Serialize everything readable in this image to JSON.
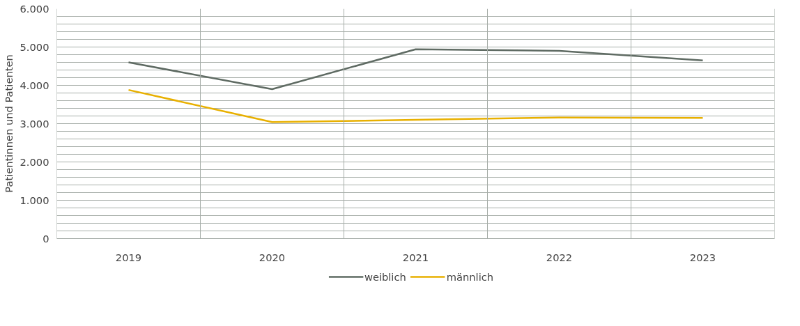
{
  "chart_data": {
    "type": "line",
    "ylabel": "Patientinnen und Patienten",
    "categories": [
      "2019",
      "2020",
      "2021",
      "2022",
      "2023"
    ],
    "series": [
      {
        "name": "weiblich",
        "color": "#5f6b63",
        "values": [
          4600,
          3900,
          4940,
          4900,
          4650
        ]
      },
      {
        "name": "männlich",
        "color": "#e8b000",
        "values": [
          3880,
          3040,
          3100,
          3160,
          3150
        ]
      }
    ],
    "ylim": [
      0,
      6000
    ],
    "yticks": [
      {
        "value": 0,
        "label": "0"
      },
      {
        "value": 200,
        "label": null
      },
      {
        "value": 400,
        "label": null
      },
      {
        "value": 600,
        "label": null
      },
      {
        "value": 800,
        "label": null
      },
      {
        "value": 1000,
        "label": "1.000"
      },
      {
        "value": 1200,
        "label": null
      },
      {
        "value": 1400,
        "label": null
      },
      {
        "value": 1600,
        "label": null
      },
      {
        "value": 1800,
        "label": null
      },
      {
        "value": 2000,
        "label": "2.000"
      },
      {
        "value": 2200,
        "label": null
      },
      {
        "value": 2400,
        "label": null
      },
      {
        "value": 2600,
        "label": null
      },
      {
        "value": 2800,
        "label": null
      },
      {
        "value": 3000,
        "label": "3.000"
      },
      {
        "value": 3200,
        "label": null
      },
      {
        "value": 3400,
        "label": null
      },
      {
        "value": 3600,
        "label": null
      },
      {
        "value": 3800,
        "label": null
      },
      {
        "value": 4000,
        "label": "4.000"
      },
      {
        "value": 4200,
        "label": null
      },
      {
        "value": 4400,
        "label": null
      },
      {
        "value": 4600,
        "label": null
      },
      {
        "value": 4800,
        "label": null
      },
      {
        "value": 5000,
        "label": "5.000"
      },
      {
        "value": 5200,
        "label": null
      },
      {
        "value": 5400,
        "label": null
      },
      {
        "value": 5600,
        "label": null
      },
      {
        "value": 5800,
        "label": null
      },
      {
        "value": 6000,
        "label": "6.000"
      }
    ],
    "grid": true,
    "legend": "bottom",
    "marker": "none",
    "line_style": "solid"
  }
}
